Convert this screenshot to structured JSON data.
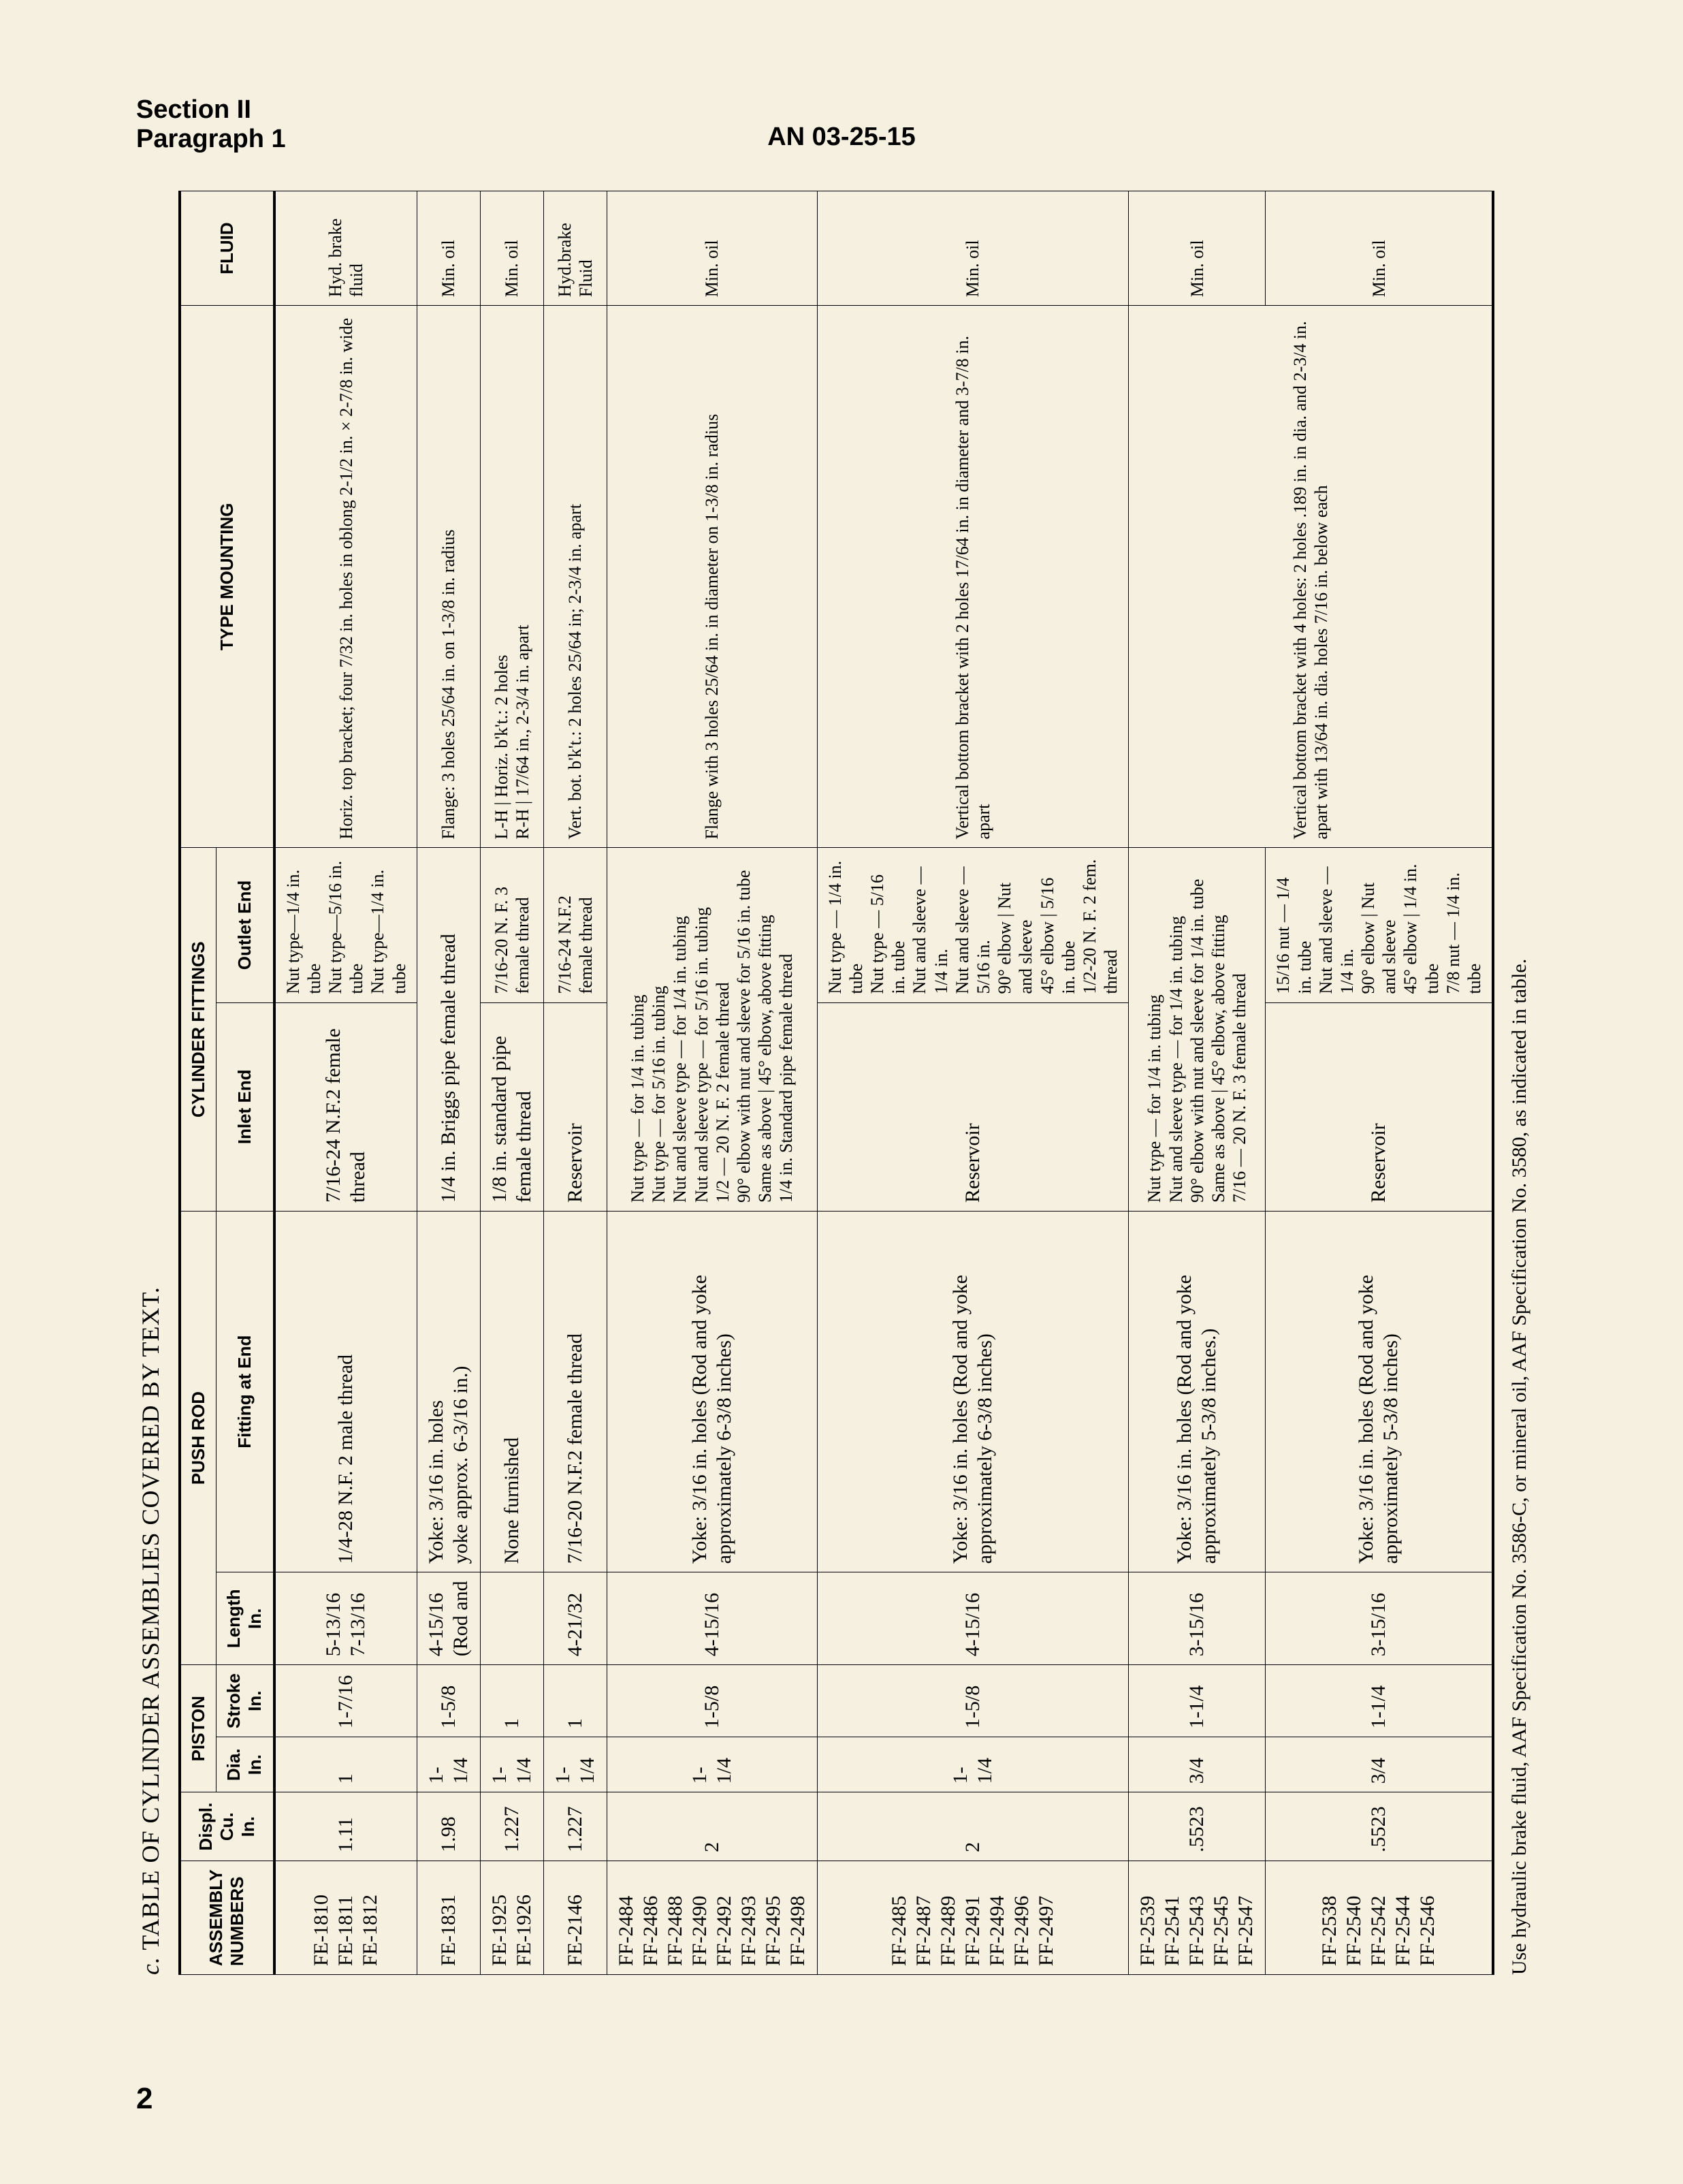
{
  "header": {
    "section": "Section II",
    "paragraph": "Paragraph 1",
    "docnum": "AN 03-25-15"
  },
  "page_number": "2",
  "table": {
    "title_prefix": "c.",
    "title": "TABLE OF CYLINDER ASSEMBLIES COVERED BY TEXT.",
    "columns": {
      "assembly": "ASSEMBLY\nNUMBERS",
      "displ": "Displ.\nCu. In.",
      "piston_group": "PISTON",
      "dia": "Dia.\nIn.",
      "stroke": "Stroke\nIn.",
      "pushrod_group": "PUSH ROD",
      "length": "Length\nIn.",
      "fitting_end": "Fitting at End",
      "cyl_fit_group": "CYLINDER FITTINGS",
      "inlet": "Inlet End",
      "outlet": "Outlet End",
      "type_mount": "TYPE MOUNTING",
      "fluid": "FLUID"
    },
    "rows": [
      {
        "assembly": "FE-1810\nFE-1811\nFE-1812",
        "displ": "1.11",
        "dia": "1",
        "stroke": "1-7/16",
        "length": "5-13/16\n7-13/16",
        "fitting_end": "1/4-28 N.F. 2 male thread",
        "inlet": "7/16-24 N.F.2 female thread",
        "outlet": "Nut type—1/4 in. tube\nNut type—5/16 in. tube\nNut type—1/4 in. tube",
        "mount": "Horiz. top bracket; four 7/32 in. holes in oblong 2-1/2 in. × 2-7/8 in. wide",
        "fluid": "Hyd. brake fluid"
      },
      {
        "assembly": "FE-1831",
        "displ": "1.98",
        "dia": "1-1/4",
        "stroke": "1-5/8",
        "length": "4-15/16\n(Rod and",
        "fitting_end": "Yoke: 3/16 in. holes\nyoke approx. 6-3/16 in.)",
        "inlet": "1/4 in. Briggs pipe female thread",
        "outlet": "",
        "mount": "Flange: 3 holes 25/64 in. on 1-3/8 in. radius",
        "fluid": "Min. oil"
      },
      {
        "assembly": "FE-1925\nFE-1926",
        "displ": "1.227",
        "dia": "1-1/4",
        "stroke": "1",
        "length": "",
        "fitting_end": "None furnished",
        "inlet": "1/8 in. standard pipe female thread",
        "outlet": "7/16-20 N. F. 3 female thread",
        "mount": "L-H | Horiz. b'k't.: 2 holes\nR-H | 17/64 in., 2-3/4 in. apart",
        "fluid": "Min. oil"
      },
      {
        "assembly": "FE-2146",
        "displ": "1.227",
        "dia": "1-1/4",
        "stroke": "1",
        "length": "4-21/32",
        "fitting_end": "7/16-20 N.F.2 female thread",
        "inlet": "Reservoir",
        "outlet": "7/16-24 N.F.2 female thread",
        "mount": "Vert. bot. b'k't.: 2 holes 25/64 in; 2-3/4 in. apart",
        "fluid": "Hyd.brake Fluid"
      },
      {
        "assembly": "FF-2484\nFF-2486\nFF-2488\nFF-2490\nFF-2492\nFF-2493\nFF-2495\nFF-2498",
        "displ": "2",
        "dia": "1-1/4",
        "stroke": "1-5/8",
        "length": "4-15/16",
        "fitting_end": "Yoke: 3/16 in. holes (Rod and yoke approximately 6-3/8 inches)",
        "inlet2": "Nut type — for 1/4 in. tubing\nNut type — for 5/16 in. tubing\nNut and sleeve type — for 1/4 in. tubing\nNut and sleeve type — for 5/16 in. tubing\n1/2 — 20 N. F. 2 female thread\n90° elbow with nut and sleeve for 5/16 in. tube\nSame as above      | 45° elbow, above fitting\n1/4 in. Standard pipe female thread",
        "outlet": "",
        "mount": "Flange with 3 holes 25/64 in. in diameter on 1-3/8 in. radius",
        "fluid": "Min. oil"
      },
      {
        "assembly": "FF-2485\nFF-2487\nFF-2489\nFF-2491\nFF-2494\nFF-2496\nFF-2497",
        "displ": "2",
        "dia": "1-1/4",
        "stroke": "1-5/8",
        "length": "4-15/16",
        "fitting_end": "Yoke: 3/16 in. holes (Rod and yoke approximately 6-3/8 inches)",
        "inlet": "Reservoir",
        "outlet": "Nut type — 1/4 in. tube\nNut type — 5/16 in. tube\nNut and sleeve — 1/4 in.\nNut and sleeve — 5/16 in.\n90° elbow | Nut and sleeve\n45° elbow | 5/16 in. tube\n1/2-20 N. F. 2 fem. thread",
        "mount": "Vertical bottom bracket with 2 holes 17/64 in. in diameter and 3-7/8 in. apart",
        "fluid": "Min. oil"
      },
      {
        "assembly": "FF-2539\nFF-2541\nFF-2543\nFF-2545\nFF-2547",
        "displ": ".5523",
        "dia": "3/4",
        "stroke": "1-1/4",
        "length": "3-15/16",
        "fitting_end": "Yoke: 3/16 in. holes (Rod and yoke approximately 5-3/8 inches.)",
        "inlet2": "Nut type — for 1/4 in. tubing\nNut and sleeve type — for 1/4 in. tubing\n90° elbow with nut and sleeve for 1/4 in. tube\nSame as above      | 45° elbow, above fitting\n7/16 — 20 N. F. 3 female thread",
        "outlet": "",
        "mount": "Vertical bottom bracket with 4 holes: 2 holes .189 in. in dia. and 2-3/4 in. apart with 13/64 in. dia. holes 7/16 in. below each",
        "fluid": "Min. oil"
      },
      {
        "assembly": "FF-2538\nFF-2540\nFF-2542\nFF-2544\nFF-2546",
        "displ": ".5523",
        "dia": "3/4",
        "stroke": "1-1/4",
        "length": "3-15/16",
        "fitting_end": "Yoke: 3/16 in. holes (Rod and yoke approximately 5-3/8 inches)",
        "inlet": "Reservoir",
        "outlet": "15/16 nut — 1/4 in. tube\nNut and sleeve — 1/4 in.\n90° elbow | Nut and sleeve\n45° elbow | 1/4 in. tube\n7/8 nut — 1/4 in. tube",
        "mount": "",
        "fluid": "Min. oil"
      }
    ],
    "footnote": "Use hydraulic brake fluid, AAF Specification No. 3586-C, or mineral oil, AAF Specification No. 3580, as indicated in table."
  }
}
